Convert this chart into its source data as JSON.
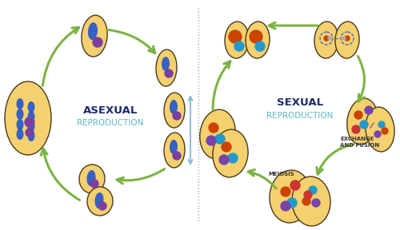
{
  "background_color": "#ffffff",
  "left_title1": "ASEXUAL",
  "left_title2": "REPRODUCTION",
  "right_title1": "SEXUAL",
  "right_title2": "REPRODUCTION",
  "title_color1": "#1a2a6c",
  "title_color2": "#5bb8c1",
  "arrow_color": "#7cb342",
  "arrow_lw": 2.2,
  "divider_color": "#aaaaaa",
  "cell_fill": "#f5d06e",
  "cell_edge": "#4a3a1a",
  "cell_lw": 1.0,
  "dna_blue": "#2255cc",
  "dna_purple": "#7b3fa0",
  "dot_orange": "#cc4400",
  "dot_blue": "#2299cc",
  "dot_purple": "#7744aa",
  "dot_red": "#cc3333",
  "light_blue_arrow": "#88bbdd",
  "label_meiosis": "MEIOSIS",
  "label_exchange": "EXCHANGE\nAND FUSION",
  "label_color": "#333333",
  "label_fontsize": 5.0
}
